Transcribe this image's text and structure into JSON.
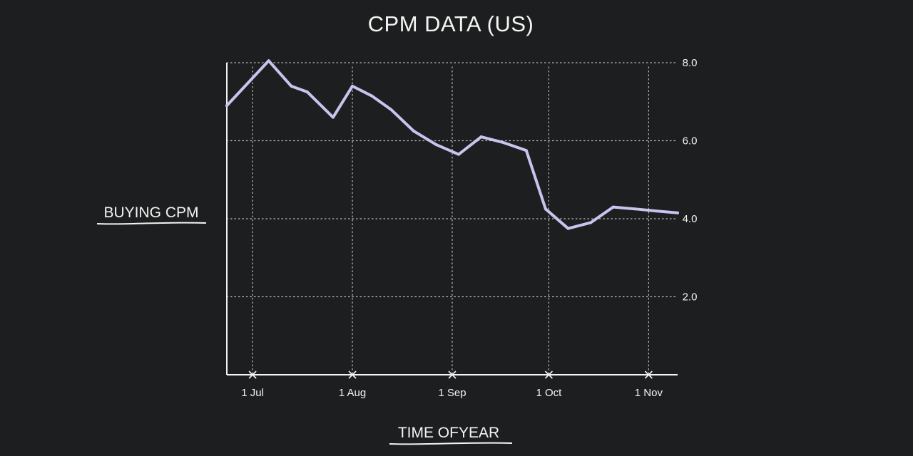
{
  "chart_data": {
    "type": "line",
    "title": "CPM DATA (US)",
    "ylabel": "BUYING CPM",
    "xlabel": "TIME OFYEAR",
    "x_ticks": [
      "1 Jul",
      "1 Aug",
      "1 Sep",
      "1 Oct",
      "1 Nov"
    ],
    "x_tick_dates": [
      "2022-07-01",
      "2022-08-01",
      "2022-09-01",
      "2022-10-01",
      "2022-11-01"
    ],
    "xlim": [
      "2022-06-23",
      "2022-11-10"
    ],
    "ylim": [
      0,
      8.0
    ],
    "y_ticks": [
      2.0,
      4.0,
      6.0,
      8.0
    ],
    "y_tick_labels": [
      "2.0",
      "4.0",
      "6.0",
      "8.0"
    ],
    "y_axis_side": "right",
    "grid": "dotted",
    "line_color": "#c9c3ee",
    "series": [
      {
        "x": [
          "2022-06-23",
          "2022-07-06",
          "2022-07-13",
          "2022-07-18",
          "2022-07-26",
          "2022-08-01",
          "2022-08-07",
          "2022-08-13",
          "2022-08-20",
          "2022-08-27",
          "2022-09-03",
          "2022-09-10",
          "2022-09-17",
          "2022-09-24",
          "2022-09-30",
          "2022-10-07",
          "2022-10-14",
          "2022-10-21",
          "2022-10-28",
          "2022-11-03",
          "2022-11-10"
        ],
        "y": [
          6.9,
          8.05,
          7.4,
          7.25,
          6.6,
          7.4,
          7.15,
          6.8,
          6.25,
          5.9,
          5.65,
          6.1,
          5.95,
          5.75,
          4.25,
          3.75,
          3.9,
          4.3,
          4.25,
          4.2,
          4.15
        ]
      }
    ]
  }
}
